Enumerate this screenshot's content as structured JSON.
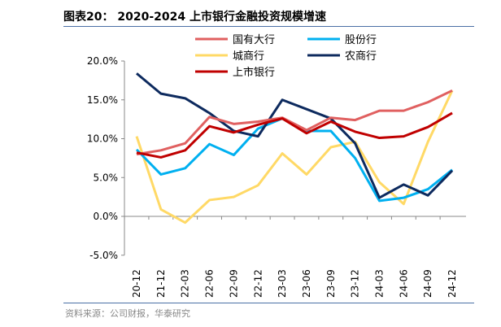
{
  "title": "图表20： 2020-2024 上市银行金融投资规模增速",
  "source": "资料来源：公司财报，华泰研究",
  "chart_data": {
    "type": "line",
    "title": "图表20： 2020-2024 上市银行金融投资规模增速",
    "categories": [
      "20-12",
      "21-12",
      "22-03",
      "22-06",
      "22-09",
      "22-12",
      "23-03",
      "23-06",
      "23-09",
      "23-12",
      "24-03",
      "24-06",
      "24-09",
      "24-12"
    ],
    "yticks": [
      "20.0%",
      "15.0%",
      "10.0%",
      "5.0%",
      "0.0%",
      "-5.0%"
    ],
    "ylim": [
      -5,
      20
    ],
    "grid": false,
    "legend": "top",
    "series": [
      {
        "name": "国有大行",
        "color": "#e06060",
        "values": [
          8.0,
          8.5,
          9.4,
          12.8,
          11.9,
          12.2,
          12.7,
          11.1,
          12.7,
          12.4,
          13.6,
          13.6,
          14.7,
          16.2
        ]
      },
      {
        "name": "股份行",
        "color": "#00b0f0",
        "values": [
          8.6,
          5.4,
          6.2,
          9.3,
          7.9,
          11.3,
          12.6,
          11.0,
          11.0,
          7.5,
          2.0,
          2.4,
          3.5,
          6.0
        ]
      },
      {
        "name": "城商行",
        "color": "#ffd966",
        "values": [
          10.3,
          0.9,
          -0.8,
          2.1,
          2.5,
          4.0,
          8.1,
          5.4,
          8.9,
          9.6,
          4.4,
          1.6,
          9.6,
          16.2
        ]
      },
      {
        "name": "农商行",
        "color": "#0d2a5e",
        "values": [
          18.4,
          15.8,
          15.2,
          13.3,
          11.0,
          10.3,
          15.0,
          13.8,
          12.6,
          9.4,
          2.4,
          4.1,
          2.7,
          5.9
        ]
      },
      {
        "name": "上市银行",
        "color": "#c00000",
        "values": [
          8.2,
          7.6,
          8.5,
          11.6,
          10.8,
          11.8,
          12.6,
          10.7,
          12.2,
          10.9,
          10.1,
          10.3,
          11.5,
          13.3
        ]
      }
    ]
  }
}
